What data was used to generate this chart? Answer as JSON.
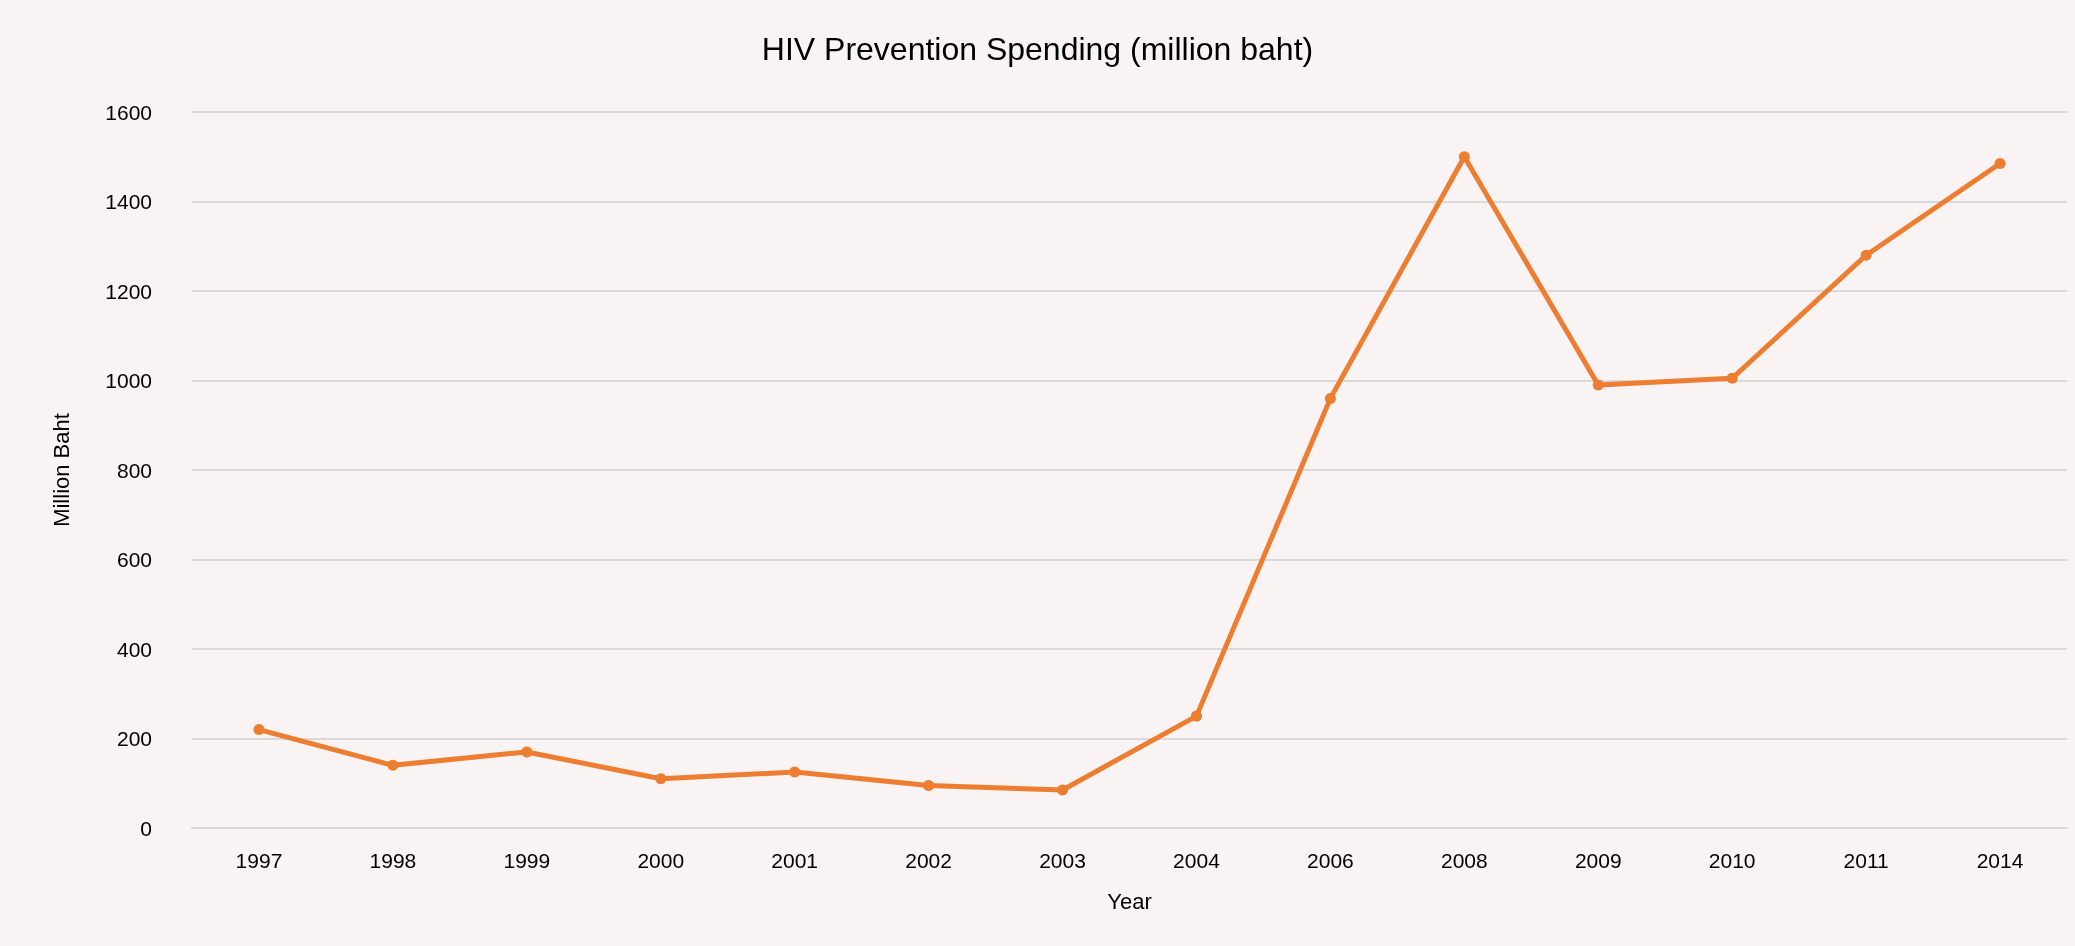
{
  "chart_data": {
    "type": "line",
    "title": "HIV Prevention Spending (million baht)",
    "xlabel": "Year",
    "ylabel": "Million Baht",
    "categories": [
      "1997",
      "1998",
      "1999",
      "2000",
      "2001",
      "2002",
      "2003",
      "2004",
      "2006",
      "2008",
      "2009",
      "2010",
      "2011",
      "2014"
    ],
    "series": [
      {
        "color": "#ed7d31",
        "values": [
          220,
          140,
          170,
          110,
          125,
          95,
          85,
          250,
          960,
          1500,
          990,
          1005,
          1280,
          1485
        ]
      }
    ],
    "ylim": [
      0,
      1600
    ],
    "yticks": [
      0,
      200,
      400,
      600,
      800,
      1000,
      1200,
      1400,
      1600
    ],
    "grid": "y",
    "marker": "circle",
    "line_style": "solid"
  }
}
